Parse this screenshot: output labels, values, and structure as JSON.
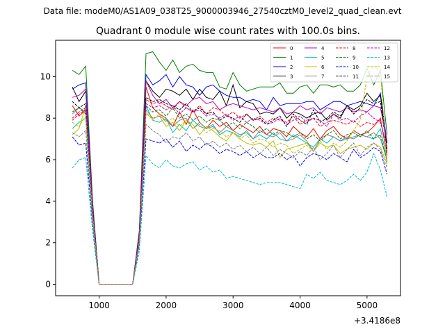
{
  "figure": {
    "suptitle": "Data file: modeM0/AS1A09_038T25_9000003946_27540cztM0_level2_quad_clean.evt"
  },
  "chart_data": {
    "type": "line",
    "title": "Quadrant 0 module wise count rates with 100.0s bins.",
    "xlabel": "",
    "ylabel": "",
    "x_offset_label": "+3.4186e8",
    "xlim": [
      350,
      5500
    ],
    "ylim": [
      -0.55,
      11.75
    ],
    "xticks": [
      1000,
      2000,
      3000,
      4000,
      5000
    ],
    "yticks": [
      0,
      2,
      4,
      6,
      8,
      10
    ],
    "grid": false,
    "legend": {
      "position": "top-right",
      "columns": 4
    },
    "x": [
      600,
      700,
      800,
      900,
      1000,
      1100,
      1200,
      1300,
      1400,
      1500,
      1600,
      1700,
      1800,
      1900,
      2000,
      2100,
      2200,
      2300,
      2400,
      2500,
      2600,
      2700,
      2800,
      2900,
      3000,
      3100,
      3200,
      3300,
      3400,
      3500,
      3600,
      3700,
      3800,
      3900,
      4000,
      4100,
      4200,
      4300,
      4400,
      4500,
      4600,
      4700,
      4800,
      4900,
      5000,
      5100,
      5200,
      5300
    ],
    "series": [
      {
        "name": "0",
        "color": "#ff0000",
        "dash": "solid",
        "values": [
          8.6,
          8.1,
          8.4,
          3.6,
          0,
          0,
          0,
          0,
          0,
          0,
          2.2,
          9.5,
          8.5,
          8.2,
          8.0,
          7.6,
          8.3,
          7.7,
          8.4,
          7.8,
          7.5,
          7.9,
          7.6,
          7.8,
          7.4,
          7.7,
          7.5,
          7.3,
          7.6,
          7.2,
          7.5,
          7.4,
          7.1,
          7.6,
          7.3,
          7.1,
          7.5,
          7.0,
          7.4,
          7.6,
          7.2,
          7.0,
          7.4,
          7.2,
          7.3,
          7.6,
          8.0,
          6.2
        ]
      },
      {
        "name": "1",
        "color": "#008000",
        "dash": "solid",
        "values": [
          10.3,
          10.1,
          10.5,
          4.1,
          0,
          0,
          0,
          0,
          0,
          0,
          2.6,
          11.1,
          11.2,
          10.7,
          10.3,
          10.8,
          10.2,
          10.5,
          10.6,
          10.3,
          10.2,
          10.2,
          9.5,
          9.4,
          10.2,
          9.6,
          9.3,
          9.4,
          9.5,
          9.5,
          9.5,
          9.7,
          9.2,
          9.2,
          9.5,
          9.6,
          9.2,
          9.6,
          9.6,
          9.5,
          9.6,
          9.3,
          9.3,
          9.6,
          10.4,
          9.6,
          10.3,
          7.2
        ]
      },
      {
        "name": "2",
        "color": "#0000ff",
        "dash": "solid",
        "values": [
          9.4,
          9.6,
          9.7,
          3.9,
          0,
          0,
          0,
          0,
          0,
          0,
          2.5,
          10.1,
          9.6,
          9.8,
          10.1,
          9.5,
          10.0,
          9.6,
          9.5,
          9.1,
          9.5,
          9.6,
          9.3,
          9.1,
          9.0,
          9.0,
          8.8,
          8.9,
          8.8,
          8.4,
          9.0,
          8.6,
          8.7,
          8.7,
          8.7,
          8.8,
          8.8,
          8.4,
          8.6,
          8.8,
          8.8,
          8.6,
          8.7,
          8.8,
          8.7,
          8.6,
          9.2,
          6.8
        ]
      },
      {
        "name": "3",
        "color": "#000000",
        "dash": "solid",
        "values": [
          9.5,
          8.8,
          9.3,
          3.8,
          0,
          0,
          0,
          0,
          0,
          0,
          2.4,
          9.8,
          9.3,
          9.0,
          9.4,
          9.3,
          9.1,
          9.4,
          8.9,
          9.4,
          9.0,
          8.9,
          9.3,
          8.6,
          9.6,
          8.5,
          8.8,
          8.7,
          8.2,
          8.3,
          8.2,
          8.5,
          8.0,
          8.3,
          8.2,
          8.0,
          8.2,
          8.3,
          7.9,
          8.2,
          8.0,
          8.6,
          8.4,
          8.6,
          9.2,
          8.8,
          9.1,
          6.5
        ]
      },
      {
        "name": "4",
        "color": "#bf00bf",
        "dash": "solid",
        "values": [
          9.0,
          9.1,
          9.4,
          3.8,
          0,
          0,
          0,
          0,
          0,
          0,
          2.4,
          9.8,
          9.1,
          8.7,
          8.9,
          8.5,
          8.8,
          8.6,
          8.9,
          9.0,
          8.7,
          8.8,
          8.4,
          8.6,
          8.7,
          8.6,
          8.5,
          8.4,
          8.5,
          8.4,
          8.3,
          8.5,
          8.2,
          8.3,
          8.6,
          8.4,
          8.5,
          8.2,
          8.5,
          8.4,
          8.3,
          8.5,
          8.3,
          8.4,
          8.3,
          8.6,
          8.5,
          6.9
        ]
      },
      {
        "name": "5",
        "color": "#00bfbf",
        "dash": "solid",
        "values": [
          7.5,
          7.8,
          8.0,
          3.3,
          0,
          0,
          0,
          0,
          0,
          0,
          2.1,
          8.6,
          7.9,
          7.8,
          8.0,
          7.3,
          7.7,
          7.4,
          7.9,
          7.6,
          7.5,
          7.7,
          7.2,
          7.4,
          7.3,
          7.1,
          7.4,
          7.0,
          7.2,
          7.0,
          7.3,
          7.0,
          6.9,
          7.2,
          7.0,
          6.8,
          6.6,
          7.0,
          6.8,
          7.1,
          6.9,
          7.0,
          7.1,
          7.2,
          7.1,
          7.0,
          7.5,
          6.0
        ]
      },
      {
        "name": "6",
        "color": "#bfbf00",
        "dash": "solid",
        "values": [
          7.2,
          7.5,
          8.6,
          3.4,
          0,
          0,
          0,
          0,
          0,
          0,
          2.0,
          8.2,
          8.0,
          8.1,
          7.6,
          7.8,
          7.4,
          7.9,
          7.7,
          7.2,
          7.6,
          7.4,
          7.1,
          6.9,
          7.3,
          7.0,
          6.8,
          6.7,
          6.8,
          6.6,
          6.9,
          6.1,
          6.5,
          6.6,
          6.7,
          6.8,
          6.4,
          6.8,
          6.6,
          6.7,
          6.3,
          6.5,
          6.6,
          6.7,
          6.5,
          6.8,
          6.6,
          5.8
        ]
      },
      {
        "name": "7",
        "color": "#808080",
        "dash": "solid",
        "values": [
          8.2,
          8.5,
          8.3,
          3.5,
          0,
          0,
          0,
          0,
          0,
          0,
          2.2,
          8.4,
          8.0,
          8.1,
          7.9,
          7.6,
          7.9,
          8.0,
          7.5,
          7.8,
          7.5,
          7.6,
          7.3,
          7.6,
          7.4,
          7.2,
          7.3,
          7.0,
          7.4,
          7.2,
          7.1,
          7.3,
          6.9,
          7.0,
          7.2,
          6.9,
          6.4,
          7.0,
          7.2,
          7.1,
          6.9,
          7.1,
          7.0,
          7.2,
          7.1,
          7.3,
          7.0,
          6.0
        ]
      },
      {
        "name": "8",
        "color": "#ff0000",
        "dash": "dashed",
        "values": [
          7.9,
          8.2,
          8.4,
          3.5,
          0,
          0,
          0,
          0,
          0,
          0,
          2.3,
          8.9,
          8.7,
          8.8,
          8.6,
          8.4,
          8.8,
          8.5,
          8.3,
          8.6,
          8.2,
          8.5,
          8.4,
          8.1,
          8.3,
          8.0,
          8.2,
          7.9,
          8.1,
          7.8,
          8.0,
          7.9,
          7.8,
          8.1,
          7.7,
          7.9,
          8.0,
          7.6,
          7.8,
          7.9,
          7.8,
          7.7,
          7.9,
          7.6,
          7.8,
          7.7,
          7.9,
          6.3
        ]
      },
      {
        "name": "9",
        "color": "#008000",
        "dash": "dashed",
        "values": [
          8.3,
          8.5,
          8.2,
          3.5,
          0,
          0,
          0,
          0,
          0,
          0,
          2.2,
          8.6,
          8.3,
          8.4,
          8.1,
          8.5,
          8.0,
          8.2,
          7.9,
          8.1,
          7.8,
          8.0,
          7.9,
          7.6,
          7.8,
          7.5,
          7.8,
          7.6,
          7.3,
          7.5,
          7.2,
          7.4,
          7.3,
          7.1,
          7.3,
          7.0,
          7.2,
          6.9,
          7.2,
          7.4,
          7.0,
          7.2,
          7.3,
          7.1,
          7.4,
          7.0,
          7.2,
          5.9
        ]
      },
      {
        "name": "10",
        "color": "#0000ff",
        "dash": "dashed",
        "values": [
          7.1,
          6.7,
          6.8,
          3.0,
          0,
          0,
          0,
          0,
          0,
          0,
          1.9,
          7.0,
          6.9,
          6.8,
          7.0,
          6.6,
          6.9,
          6.4,
          6.7,
          6.5,
          6.8,
          6.6,
          6.3,
          6.5,
          6.4,
          6.2,
          6.4,
          6.1,
          6.3,
          6.1,
          6.1,
          6.3,
          6.0,
          6.2,
          5.7,
          6.1,
          6.3,
          6.2,
          6.0,
          6.3,
          6.1,
          5.9,
          6.5,
          6.1,
          6.3,
          6.6,
          6.4,
          5.3
        ]
      },
      {
        "name": "11",
        "color": "#000000",
        "dash": "dashed",
        "values": [
          8.8,
          8.5,
          8.7,
          3.6,
          0,
          0,
          0,
          0,
          0,
          0,
          2.3,
          9.0,
          8.8,
          8.9,
          8.7,
          8.6,
          8.4,
          8.7,
          8.3,
          8.5,
          8.2,
          8.3,
          7.9,
          8.1,
          8.0,
          7.8,
          8.2,
          7.9,
          8.0,
          7.7,
          7.9,
          8.1,
          7.6,
          8.2,
          7.9,
          7.7,
          8.4,
          7.8,
          8.0,
          8.3,
          8.1,
          8.6,
          8.2,
          8.5,
          8.9,
          8.7,
          8.8,
          6.4
        ]
      },
      {
        "name": "12",
        "color": "#bf00bf",
        "dash": "dashed",
        "values": [
          8.0,
          8.3,
          8.5,
          3.5,
          0,
          0,
          0,
          0,
          0,
          0,
          2.3,
          8.7,
          8.5,
          8.6,
          8.4,
          8.6,
          8.2,
          8.5,
          8.3,
          8.4,
          8.1,
          8.2,
          8.0,
          8.2,
          7.9,
          8.1,
          7.8,
          8.0,
          7.9,
          7.7,
          7.8,
          8.0,
          7.7,
          7.9,
          8.1,
          7.8,
          8.0,
          7.9,
          7.6,
          8.2,
          7.9,
          8.0,
          7.8,
          8.1,
          8.3,
          8.0,
          7.8,
          6.6
        ]
      },
      {
        "name": "13",
        "color": "#00bfbf",
        "dash": "dashed",
        "values": [
          5.6,
          6.0,
          6.1,
          2.6,
          0,
          0,
          0,
          0,
          0,
          0,
          1.6,
          6.2,
          5.8,
          5.6,
          6.0,
          5.7,
          5.6,
          5.8,
          5.9,
          5.5,
          5.7,
          5.4,
          5.5,
          5.1,
          5.2,
          5.1,
          5.0,
          4.9,
          4.8,
          4.9,
          4.9,
          4.9,
          4.8,
          4.7,
          4.6,
          5.3,
          5.1,
          5.4,
          5.0,
          4.9,
          4.8,
          5.0,
          5.3,
          5.0,
          5.4,
          6.3,
          5.5,
          4.2
        ]
      },
      {
        "name": "14",
        "color": "#bfbf00",
        "dash": "dashed",
        "values": [
          7.8,
          7.6,
          8.1,
          3.4,
          0,
          0,
          0,
          0,
          0,
          0,
          2.1,
          8.3,
          7.9,
          8.2,
          7.8,
          8.0,
          7.6,
          7.9,
          7.5,
          7.7,
          7.3,
          7.5,
          7.4,
          7.1,
          7.3,
          7.0,
          7.2,
          6.8,
          7.0,
          6.9,
          6.6,
          6.8,
          6.7,
          6.3,
          6.5,
          6.7,
          6.4,
          6.9,
          6.5,
          6.8,
          6.6,
          6.9,
          7.4,
          7.9,
          10.0,
          10.5,
          10.3,
          5.5
        ]
      },
      {
        "name": "15",
        "color": "#808080",
        "dash": "dashed",
        "values": [
          7.3,
          7.1,
          7.4,
          3.1,
          0,
          0,
          0,
          0,
          0,
          0,
          2.0,
          7.7,
          7.4,
          7.2,
          6.8,
          7.1,
          7.0,
          7.3,
          6.9,
          7.1,
          6.7,
          6.9,
          6.6,
          6.8,
          6.5,
          6.7,
          6.4,
          6.6,
          6.3,
          6.6,
          6.2,
          6.5,
          6.3,
          6.1,
          6.4,
          6.2,
          6.6,
          6.0,
          6.3,
          6.7,
          6.1,
          6.5,
          6.8,
          6.2,
          6.6,
          6.8,
          6.5,
          5.6
        ]
      }
    ]
  }
}
